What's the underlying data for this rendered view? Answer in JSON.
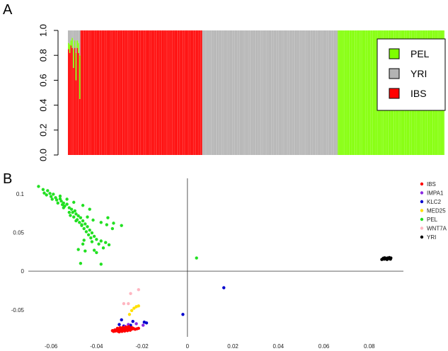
{
  "chart_data": [
    {
      "panel": "A",
      "type": "bar",
      "stacked": true,
      "ylim": [
        0,
        1
      ],
      "yticks": [
        "0.0",
        "0.2",
        "0.4",
        "0.6",
        "0.8",
        "1.0"
      ],
      "legend": {
        "placement": "right",
        "entries": [
          {
            "name": "PEL",
            "color": "#7fff00"
          },
          {
            "name": "YRI",
            "color": "#b3b3b3"
          },
          {
            "name": "IBS",
            "color": "#ff0000"
          }
        ]
      },
      "groups": [
        {
          "population": "IBS",
          "count": 107,
          "mixed_head": 10
        },
        {
          "population": "YRI",
          "count": 108
        },
        {
          "population": "PEL",
          "count": 85
        }
      ]
    },
    {
      "panel": "B",
      "type": "scatter",
      "xlim": [
        -0.07,
        0.095
      ],
      "ylim": [
        -0.085,
        0.12
      ],
      "xticks": [
        -0.06,
        -0.04,
        -0.02,
        0,
        0.02,
        0.04,
        0.06,
        0.08
      ],
      "xtick_labels": [
        "-0.06",
        "-0.04",
        "-0.02",
        "0",
        "0.02",
        "0.04",
        "0.06",
        "0.08"
      ],
      "yticks": [
        -0.05,
        0,
        0.05,
        0.1
      ],
      "ytick_labels": [
        "-0.05",
        "0",
        "0.05",
        "0.1"
      ],
      "legend_placement": "top-right",
      "series": [
        {
          "name": "IBS",
          "color": "#ff0000"
        },
        {
          "name": "IMPA1",
          "color": "#8b2be2"
        },
        {
          "name": "KLC2",
          "color": "#0000cd"
        },
        {
          "name": "MED25",
          "color": "#ffe000"
        },
        {
          "name": "PEL",
          "color": "#22e022"
        },
        {
          "name": "WNT7A",
          "color": "#ffb6c1"
        },
        {
          "name": "YRI",
          "color": "#000000"
        }
      ],
      "points": {
        "PEL": [
          [
            -0.0655,
            0.1095
          ],
          [
            -0.0635,
            0.1055
          ],
          [
            -0.0615,
            0.104
          ],
          [
            -0.0605,
            0.1005
          ],
          [
            -0.059,
            0.0995
          ],
          [
            -0.062,
            0.0985
          ],
          [
            -0.06,
            0.0965
          ],
          [
            -0.058,
            0.095
          ],
          [
            -0.056,
            0.0935
          ],
          [
            -0.0575,
            0.092
          ],
          [
            -0.0555,
            0.0905
          ],
          [
            -0.0545,
            0.088
          ],
          [
            -0.053,
            0.0865
          ],
          [
            -0.054,
            0.084
          ],
          [
            -0.052,
            0.082
          ],
          [
            -0.051,
            0.08
          ],
          [
            -0.0495,
            0.078
          ],
          [
            -0.0505,
            0.076
          ],
          [
            -0.049,
            0.074
          ],
          [
            -0.048,
            0.0715
          ],
          [
            -0.05,
            0.07
          ],
          [
            -0.047,
            0.069
          ],
          [
            -0.0485,
            0.0665
          ],
          [
            -0.046,
            0.065
          ],
          [
            -0.0475,
            0.063
          ],
          [
            -0.045,
            0.061
          ],
          [
            -0.0465,
            0.059
          ],
          [
            -0.044,
            0.0575
          ],
          [
            -0.0455,
            0.055
          ],
          [
            -0.043,
            0.053
          ],
          [
            -0.0445,
            0.051
          ],
          [
            -0.042,
            0.0495
          ],
          [
            -0.0435,
            0.047
          ],
          [
            -0.041,
            0.045
          ],
          [
            -0.0425,
            0.043
          ],
          [
            -0.04,
            0.041
          ],
          [
            -0.038,
            0.039
          ],
          [
            -0.036,
            0.037
          ],
          [
            -0.039,
            0.035
          ],
          [
            -0.0345,
            0.034
          ],
          [
            -0.037,
            0.03
          ],
          [
            -0.041,
            0.027
          ],
          [
            -0.045,
            0.026
          ],
          [
            -0.035,
            0.069
          ],
          [
            -0.0325,
            0.062
          ],
          [
            -0.029,
            0.059
          ],
          [
            -0.033,
            0.055
          ],
          [
            -0.04,
            0.024
          ],
          [
            -0.048,
            0.028
          ],
          [
            -0.052,
            0.076
          ],
          [
            -0.044,
            0.07
          ],
          [
            -0.0415,
            0.066
          ],
          [
            -0.038,
            0.063
          ],
          [
            -0.0355,
            0.06
          ],
          [
            -0.043,
            0.08
          ],
          [
            -0.046,
            0.085
          ],
          [
            -0.05,
            0.089
          ],
          [
            -0.053,
            0.093
          ],
          [
            -0.056,
            0.097
          ],
          [
            -0.057,
            0.088
          ],
          [
            -0.0545,
            0.082
          ],
          [
            -0.0515,
            0.072
          ],
          [
            -0.049,
            0.065
          ],
          [
            -0.0465,
            0.06
          ],
          [
            -0.0455,
            0.04
          ],
          [
            -0.042,
            0.038
          ],
          [
            -0.046,
            0.035
          ],
          [
            0.004,
            0.017
          ],
          [
            -0.047,
            0.01
          ],
          [
            -0.038,
            0.009
          ],
          [
            -0.063,
            0.101
          ],
          [
            -0.0595,
            0.093
          ],
          [
            -0.055,
            0.086
          ]
        ],
        "YRI": [
          [
            0.0855,
            0.015
          ],
          [
            0.086,
            0.016
          ],
          [
            0.0865,
            0.0155
          ],
          [
            0.087,
            0.0165
          ],
          [
            0.0875,
            0.016
          ],
          [
            0.088,
            0.017
          ],
          [
            0.0885,
            0.0165
          ],
          [
            0.089,
            0.016
          ],
          [
            0.0895,
            0.017
          ],
          [
            0.0868,
            0.0172
          ],
          [
            0.0878,
            0.015
          ],
          [
            0.0888,
            0.0175
          ],
          [
            0.0893,
            0.0155
          ],
          [
            0.0872,
            0.0158
          ],
          [
            0.0882,
            0.0162
          ],
          [
            0.0862,
            0.0168
          ]
        ],
        "IBS": [
          [
            -0.0325,
            -0.078
          ],
          [
            -0.0318,
            -0.0775
          ],
          [
            -0.031,
            -0.077
          ],
          [
            -0.0305,
            -0.0778
          ],
          [
            -0.03,
            -0.0765
          ],
          [
            -0.0295,
            -0.0772
          ],
          [
            -0.029,
            -0.076
          ],
          [
            -0.0285,
            -0.0768
          ],
          [
            -0.028,
            -0.0755
          ],
          [
            -0.0275,
            -0.0762
          ],
          [
            -0.027,
            -0.075
          ],
          [
            -0.0265,
            -0.0758
          ],
          [
            -0.026,
            -0.0745
          ],
          [
            -0.0255,
            -0.0752
          ],
          [
            -0.025,
            -0.0742
          ],
          [
            -0.0245,
            -0.075
          ],
          [
            -0.024,
            -0.0738
          ],
          [
            -0.0235,
            -0.0745
          ],
          [
            -0.0312,
            -0.0758
          ],
          [
            -0.0302,
            -0.075
          ],
          [
            -0.0292,
            -0.0745
          ],
          [
            -0.0282,
            -0.074
          ],
          [
            -0.0272,
            -0.0735
          ],
          [
            -0.0262,
            -0.073
          ],
          [
            -0.03,
            -0.0785
          ],
          [
            -0.0288,
            -0.078
          ],
          [
            -0.0276,
            -0.0775
          ],
          [
            -0.0264,
            -0.077
          ],
          [
            -0.0252,
            -0.0765
          ],
          [
            -0.0308,
            -0.074
          ],
          [
            -0.0296,
            -0.0732
          ],
          [
            -0.0284,
            -0.0728
          ],
          [
            -0.023,
            -0.0752
          ],
          [
            -0.0222,
            -0.0745
          ],
          [
            -0.0215,
            -0.074
          ],
          [
            -0.027,
            -0.0722
          ],
          [
            -0.0258,
            -0.0718
          ],
          [
            -0.033,
            -0.077
          ],
          [
            -0.032,
            -0.0762
          ],
          [
            -0.0245,
            -0.073
          ]
        ],
        "IMPA1": [
          [
            -0.0195,
            -0.07
          ],
          [
            -0.0225,
            -0.068
          ],
          [
            -0.026,
            -0.069
          ],
          [
            -0.0275,
            -0.0715
          ]
        ],
        "KLC2": [
          [
            -0.019,
            -0.066
          ],
          [
            -0.024,
            -0.065
          ],
          [
            -0.029,
            -0.063
          ],
          [
            -0.03,
            -0.069
          ],
          [
            -0.018,
            -0.067
          ],
          [
            -0.002,
            -0.056
          ],
          [
            0.016,
            -0.0215
          ],
          [
            -0.025,
            -0.07
          ],
          [
            -0.028,
            -0.071
          ]
        ],
        "MED25": [
          [
            -0.0215,
            -0.045
          ],
          [
            -0.0225,
            -0.046
          ],
          [
            -0.0245,
            -0.051
          ],
          [
            -0.0255,
            -0.056
          ],
          [
            -0.0235,
            -0.048
          ]
        ],
        "WNT7A": [
          [
            -0.0215,
            -0.024
          ],
          [
            -0.025,
            -0.029
          ],
          [
            -0.026,
            -0.042
          ],
          [
            -0.028,
            -0.042
          ]
        ]
      }
    }
  ]
}
